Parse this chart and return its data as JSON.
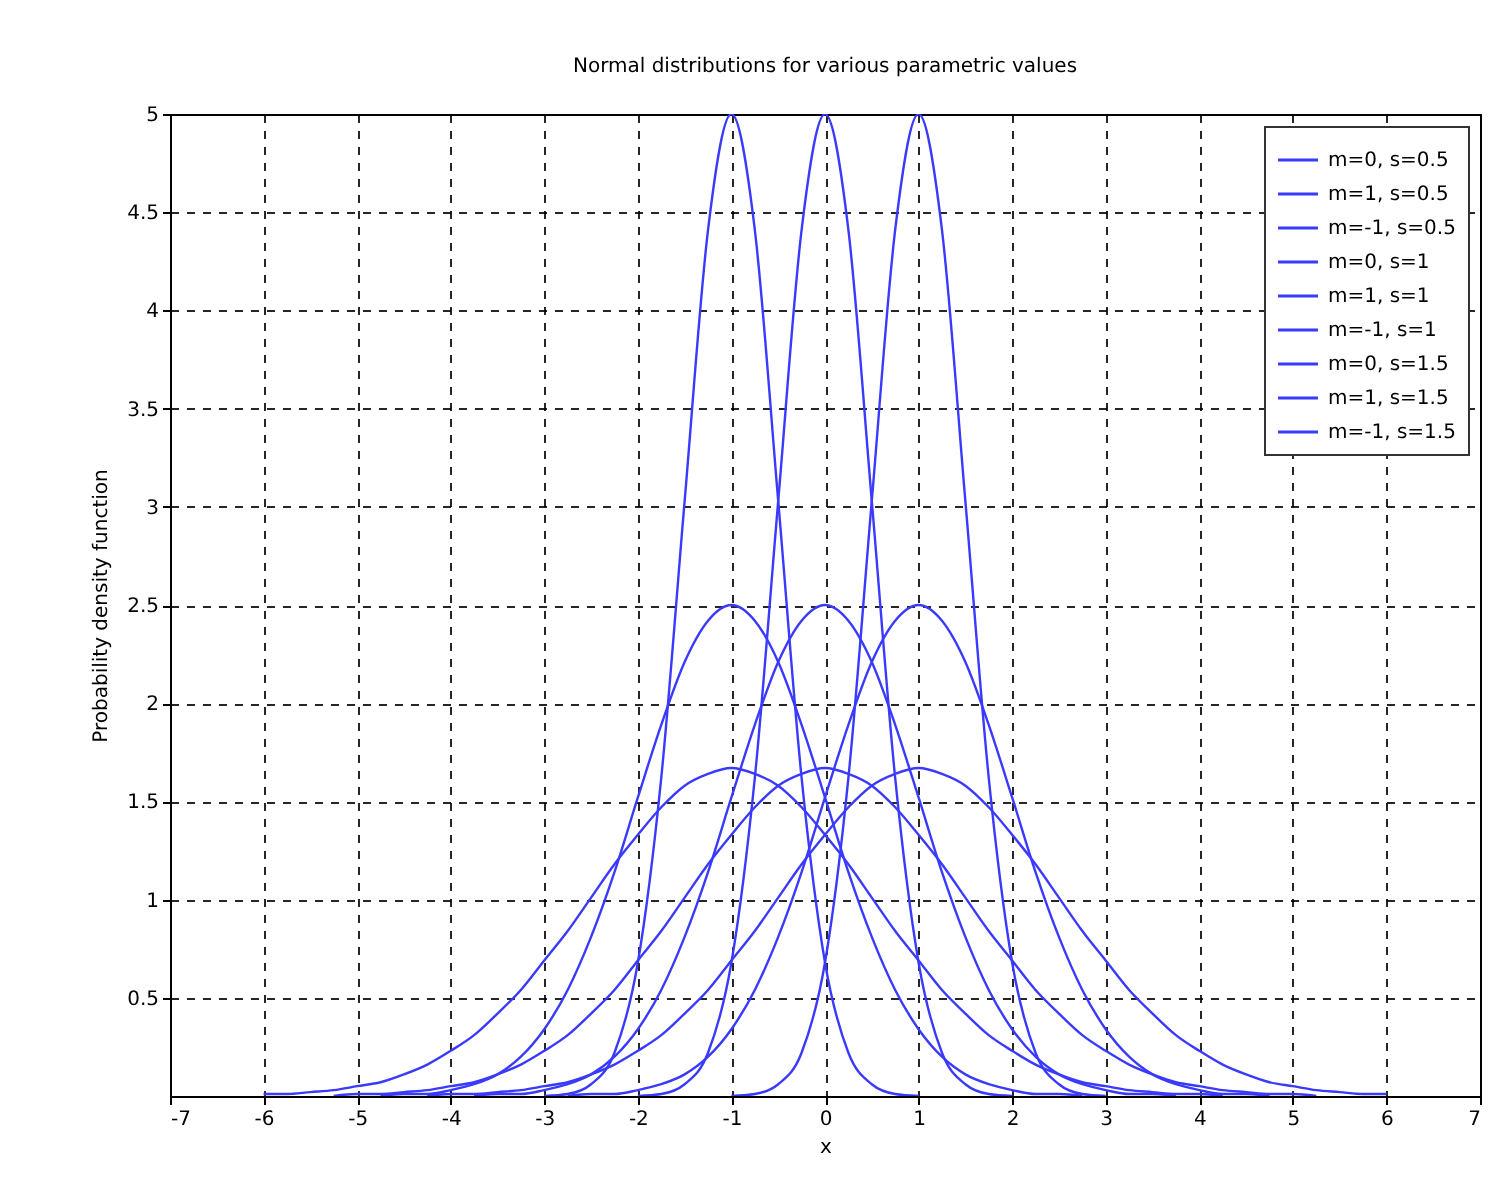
{
  "chart_data": {
    "type": "line",
    "title": "Normal distributions for various parametric values",
    "xlabel": "x",
    "ylabel": "Probability density function",
    "x": [
      -6,
      -5.75,
      -5.5,
      -5.25,
      -5,
      -4.75,
      -4.5,
      -4.25,
      -4,
      -3.75,
      -3.5,
      -3.25,
      -3,
      -2.75,
      -2.5,
      -2.25,
      -2,
      -1.75,
      -1.5,
      -1.25,
      -1,
      -0.75,
      -0.5,
      -0.25,
      0,
      0.25,
      0.5,
      0.75,
      1,
      1.25,
      1.5,
      1.75,
      2,
      2.25,
      2.5,
      2.75,
      3,
      3.25,
      3.5,
      3.75,
      4,
      4.25,
      4.5,
      4.75,
      5,
      5.25,
      5.5,
      5.75,
      6
    ],
    "series": [
      {
        "name": "m=0, s=0.5",
        "color": "#3a3aff",
        "values": [
          null,
          null,
          null,
          null,
          null,
          null,
          null,
          null,
          null,
          null,
          null,
          null,
          null,
          null,
          null,
          null,
          0,
          0.01,
          0.06,
          0.22,
          0.68,
          1.62,
          3.03,
          4.41,
          5,
          4.41,
          3.03,
          1.62,
          0.68,
          0.22,
          0.06,
          0.01,
          0,
          null,
          null,
          null,
          null,
          null,
          null,
          null,
          null,
          null,
          null,
          null,
          null,
          null,
          null,
          null,
          null
        ]
      },
      {
        "name": "m=1, s=0.5",
        "color": "#3a3aff",
        "values": [
          null,
          null,
          null,
          null,
          null,
          null,
          null,
          null,
          null,
          null,
          null,
          null,
          null,
          null,
          null,
          null,
          null,
          null,
          null,
          null,
          0,
          0.01,
          0.06,
          0.22,
          0.68,
          1.62,
          3.03,
          4.41,
          5,
          4.41,
          3.03,
          1.62,
          0.68,
          0.22,
          0.06,
          0.01,
          0,
          null,
          null,
          null,
          null,
          null,
          null,
          null,
          null,
          null,
          null,
          null,
          null
        ]
      },
      {
        "name": "m=-1, s=0.5",
        "color": "#3a3aff",
        "values": [
          null,
          null,
          null,
          null,
          null,
          null,
          null,
          null,
          null,
          null,
          null,
          null,
          0,
          0.01,
          0.06,
          0.22,
          0.68,
          1.62,
          3.03,
          4.41,
          5,
          4.41,
          3.03,
          1.62,
          0.68,
          0.22,
          0.06,
          0.01,
          0,
          null,
          null,
          null,
          null,
          null,
          null,
          null,
          null,
          null,
          null,
          null,
          null,
          null,
          null,
          null,
          null,
          null,
          null,
          null,
          null
        ]
      },
      {
        "name": "m=0, s=1",
        "color": "#3a3aff",
        "values": [
          null,
          null,
          null,
          null,
          null,
          null,
          null,
          null,
          null,
          0,
          0.01,
          0.01,
          0.03,
          0.06,
          0.11,
          0.2,
          0.34,
          0.54,
          0.81,
          1.14,
          1.52,
          1.89,
          2.21,
          2.42,
          2.5,
          2.42,
          2.21,
          1.89,
          1.52,
          1.14,
          0.81,
          0.54,
          0.34,
          0.2,
          0.11,
          0.06,
          0.03,
          0.01,
          0.01,
          0,
          null,
          null,
          null,
          null,
          null,
          null,
          null,
          null,
          null
        ]
      },
      {
        "name": "m=1, s=1",
        "color": "#3a3aff",
        "values": [
          null,
          null,
          null,
          null,
          null,
          null,
          null,
          null,
          null,
          null,
          null,
          null,
          null,
          0,
          0.01,
          0.01,
          0.03,
          0.06,
          0.11,
          0.2,
          0.34,
          0.54,
          0.81,
          1.14,
          1.52,
          1.89,
          2.21,
          2.42,
          2.5,
          2.42,
          2.21,
          1.89,
          1.52,
          1.14,
          0.81,
          0.54,
          0.34,
          0.2,
          0.11,
          0.06,
          0.03,
          0.01,
          0.01,
          0,
          null,
          null,
          null,
          null,
          null
        ]
      },
      {
        "name": "m=-1, s=1",
        "color": "#3a3aff",
        "values": [
          null,
          null,
          null,
          null,
          null,
          0,
          0.01,
          0.01,
          0.03,
          0.06,
          0.11,
          0.2,
          0.34,
          0.54,
          0.81,
          1.14,
          1.52,
          1.89,
          2.21,
          2.42,
          2.5,
          2.42,
          2.21,
          1.89,
          1.52,
          1.14,
          0.81,
          0.54,
          0.34,
          0.2,
          0.11,
          0.06,
          0.03,
          0.01,
          0.01,
          0,
          null,
          null,
          null,
          null,
          null,
          null,
          null,
          null,
          null,
          null,
          null,
          null,
          null
        ]
      },
      {
        "name": "m=0, s=1.5",
        "color": "#3a3aff",
        "values": [
          null,
          null,
          null,
          0,
          0.01,
          0.01,
          0.02,
          0.03,
          0.05,
          0.07,
          0.11,
          0.16,
          0.23,
          0.31,
          0.42,
          0.54,
          0.69,
          0.84,
          1.01,
          1.18,
          1.33,
          1.47,
          1.58,
          1.64,
          1.67,
          1.64,
          1.58,
          1.47,
          1.33,
          1.18,
          1.01,
          0.84,
          0.69,
          0.54,
          0.42,
          0.31,
          0.23,
          0.16,
          0.11,
          0.07,
          0.05,
          0.03,
          0.02,
          0.01,
          0.01,
          0,
          null,
          null,
          null
        ]
      },
      {
        "name": "m=1, s=1.5",
        "color": "#3a3aff",
        "values": [
          null,
          null,
          null,
          null,
          null,
          null,
          null,
          0,
          0.01,
          0.01,
          0.02,
          0.03,
          0.05,
          0.07,
          0.11,
          0.16,
          0.23,
          0.31,
          0.42,
          0.54,
          0.69,
          0.84,
          1.01,
          1.18,
          1.33,
          1.47,
          1.58,
          1.64,
          1.67,
          1.64,
          1.58,
          1.47,
          1.33,
          1.18,
          1.01,
          0.84,
          0.69,
          0.54,
          0.42,
          0.31,
          0.23,
          0.16,
          0.11,
          0.07,
          0.05,
          0.03,
          0.02,
          0.01,
          0.01
        ]
      },
      {
        "name": "m=-1, s=1.5",
        "color": "#3a3aff",
        "values": [
          0.01,
          0.01,
          0.02,
          0.03,
          0.05,
          0.07,
          0.11,
          0.16,
          0.23,
          0.31,
          0.42,
          0.54,
          0.69,
          0.84,
          1.01,
          1.18,
          1.33,
          1.47,
          1.58,
          1.64,
          1.67,
          1.64,
          1.58,
          1.47,
          1.33,
          1.18,
          1.01,
          0.84,
          0.69,
          0.54,
          0.42,
          0.31,
          0.23,
          0.16,
          0.11,
          0.07,
          0.05,
          0.03,
          0.02,
          0.01,
          0.01,
          0,
          null,
          null,
          null,
          null,
          null,
          null,
          null
        ]
      }
    ],
    "xlim": [
      -7,
      7
    ],
    "xticks": [
      -7,
      -6,
      -5,
      -4,
      -3,
      -2,
      -1,
      0,
      1,
      2,
      3,
      4,
      5,
      6,
      7
    ],
    "ylim": [
      0,
      5
    ],
    "yticks": [
      0.5,
      1,
      1.5,
      2,
      2.5,
      3,
      3.5,
      4,
      4.5,
      5
    ],
    "grid": true,
    "legend": "top right"
  }
}
